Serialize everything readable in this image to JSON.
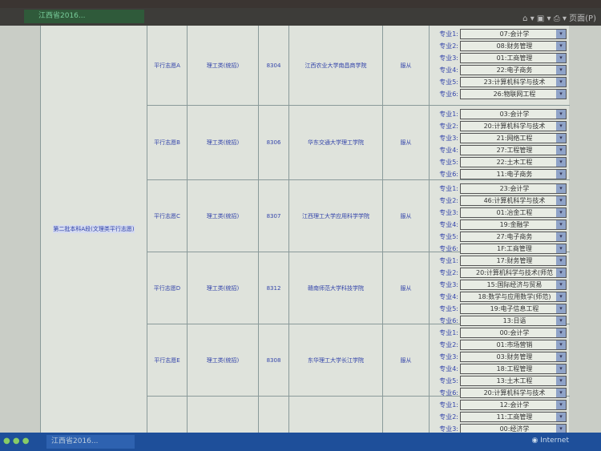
{
  "browser": {
    "tab_label": "江西省2016...",
    "page_menu": "页面(P)",
    "status_zone": "Internet",
    "taskbar_item": "江西省2016..."
  },
  "group_label": "第二批本科A段(文理类平行志愿)",
  "rows": [
    {
      "choice": "平行志愿A",
      "category": "理工类(统招)",
      "code": "8304",
      "school": "江西农业大学南昌商学院",
      "obey": "服从",
      "majors": [
        "07:会计学",
        "08:财务管理",
        "01:工商管理",
        "22:电子商务",
        "23:计算机科学与技术",
        "26:物联网工程"
      ]
    },
    {
      "choice": "平行志愿B",
      "category": "理工类(统招)",
      "code": "8306",
      "school": "华东交通大学理工学院",
      "obey": "服从",
      "majors": [
        "03:会计学",
        "20:计算机科学与技术",
        "21:网络工程",
        "27:工程管理",
        "22:土木工程",
        "11:电子商务"
      ]
    },
    {
      "choice": "平行志愿C",
      "category": "理工类(统招)",
      "code": "8307",
      "school": "江西理工大学应用科学学院",
      "obey": "服从",
      "majors": [
        "23:会计学",
        "46:计算机科学与技术",
        "01:冶金工程",
        "19:金融学",
        "27:电子商务",
        "1F:工商管理"
      ]
    },
    {
      "choice": "平行志愿D",
      "category": "理工类(统招)",
      "code": "8312",
      "school": "赣南师范大学科技学院",
      "obey": "服从",
      "majors": [
        "17:财务管理",
        "20:计算机科学与技术(师范",
        "15:国际经济与贸易",
        "18:数学与应用数学(师范)",
        "19:电子信息工程",
        "13:日语"
      ]
    },
    {
      "choice": "平行志愿E",
      "category": "理工类(统招)",
      "code": "8308",
      "school": "东华理工大学长江学院",
      "obey": "服从",
      "majors": [
        "00:会计学",
        "01:市场营销",
        "03:财务管理",
        "18:工程管理",
        "13:土木工程",
        "20:计算机科学与技术"
      ]
    },
    {
      "choice": "",
      "category": "",
      "code": "",
      "school": "",
      "obey": "",
      "majors": [
        "12:会计学",
        "11:工商管理",
        "00:经济学"
      ]
    }
  ],
  "major_label_prefix": "专业"
}
